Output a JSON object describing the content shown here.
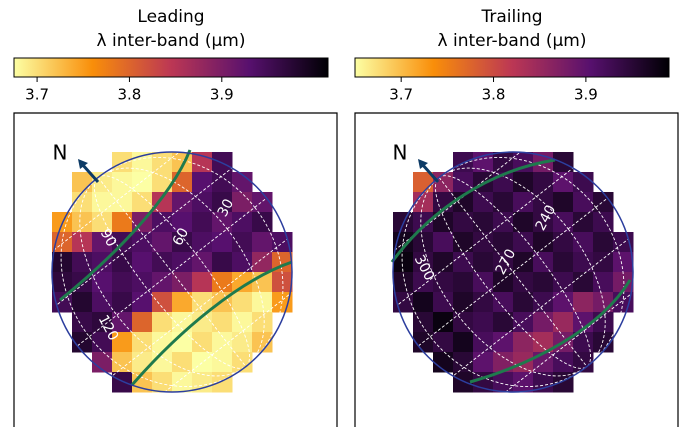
{
  "chart_data": [
    {
      "type": "heatmap",
      "title": "Leading",
      "colorbar_label": "λ inter-band  (μm)",
      "north_label": "N",
      "clim": [
        3.675,
        4.015
      ],
      "cticks": [
        3.7,
        3.8,
        3.9
      ],
      "longitude_labels": [
        30,
        60,
        90,
        120
      ],
      "values": [
        [
          null,
          null,
          null,
          3.7,
          3.68,
          3.7,
          3.72,
          3.85,
          3.95,
          null,
          null,
          null
        ],
        [
          null,
          3.72,
          3.69,
          3.68,
          3.67,
          3.7,
          3.8,
          3.93,
          3.95,
          3.92,
          null,
          null
        ],
        [
          null,
          3.7,
          3.68,
          3.68,
          3.7,
          3.85,
          3.92,
          3.94,
          3.96,
          3.9,
          3.92,
          null
        ],
        [
          3.75,
          3.72,
          3.7,
          3.78,
          3.9,
          3.94,
          3.93,
          3.95,
          3.92,
          3.94,
          3.96,
          null
        ],
        [
          3.8,
          3.85,
          3.92,
          3.95,
          3.94,
          3.92,
          3.96,
          3.94,
          3.93,
          3.95,
          3.92,
          3.94
        ],
        [
          3.98,
          3.95,
          3.94,
          3.96,
          3.93,
          3.95,
          3.94,
          3.92,
          3.96,
          3.94,
          3.88,
          3.8
        ],
        [
          3.97,
          3.96,
          3.93,
          3.95,
          3.94,
          3.92,
          3.9,
          3.85,
          3.78,
          3.74,
          3.72,
          3.82
        ],
        [
          3.95,
          3.98,
          3.94,
          3.96,
          3.93,
          3.82,
          3.74,
          3.7,
          3.72,
          3.7,
          3.68,
          3.75
        ],
        [
          null,
          3.96,
          3.97,
          3.92,
          3.8,
          3.7,
          3.68,
          3.69,
          3.7,
          3.68,
          3.7,
          null
        ],
        [
          null,
          3.98,
          3.95,
          3.75,
          3.7,
          3.68,
          3.67,
          3.7,
          3.68,
          3.69,
          3.72,
          null
        ],
        [
          null,
          null,
          3.9,
          3.72,
          3.69,
          3.68,
          3.7,
          3.67,
          3.68,
          3.7,
          null,
          null
        ],
        [
          null,
          null,
          null,
          3.96,
          3.72,
          3.7,
          3.68,
          3.69,
          3.7,
          null,
          null,
          null
        ]
      ]
    },
    {
      "type": "heatmap",
      "title": "Trailing",
      "colorbar_label": "λ inter-band  (μm)",
      "north_label": "N",
      "clim": [
        3.65,
        3.99
      ],
      "cticks": [
        3.7,
        3.8,
        3.9
      ],
      "longitude_labels": [
        240,
        270,
        300
      ],
      "values": [
        [
          null,
          null,
          null,
          3.93,
          3.9,
          3.94,
          3.92,
          3.88,
          3.95,
          null,
          null,
          null
        ],
        [
          null,
          3.78,
          3.86,
          3.92,
          3.95,
          3.93,
          3.96,
          3.94,
          3.9,
          3.93,
          null,
          null
        ],
        [
          null,
          3.84,
          3.94,
          3.96,
          3.93,
          3.95,
          3.92,
          3.94,
          3.96,
          3.92,
          3.95,
          null
        ],
        [
          3.95,
          3.93,
          3.96,
          3.94,
          3.95,
          3.93,
          3.96,
          3.94,
          3.92,
          3.95,
          3.93,
          null
        ],
        [
          3.97,
          3.95,
          3.92,
          3.96,
          3.94,
          3.95,
          3.93,
          3.96,
          3.94,
          3.92,
          3.95,
          3.93
        ],
        [
          3.98,
          3.94,
          3.96,
          3.93,
          3.95,
          3.94,
          3.96,
          3.92,
          3.95,
          3.93,
          3.94,
          3.9
        ],
        [
          3.96,
          3.93,
          3.94,
          3.95,
          3.92,
          3.96,
          3.94,
          3.95,
          3.93,
          3.95,
          3.92,
          3.88
        ],
        [
          3.94,
          3.97,
          3.93,
          3.96,
          3.94,
          3.92,
          3.95,
          3.93,
          3.9,
          3.86,
          3.88,
          3.92
        ],
        [
          null,
          3.95,
          3.98,
          3.94,
          3.93,
          3.95,
          3.92,
          3.88,
          3.85,
          3.9,
          3.93,
          null
        ],
        [
          null,
          3.96,
          3.94,
          3.97,
          3.92,
          3.9,
          3.86,
          3.84,
          3.88,
          3.93,
          3.95,
          null
        ],
        [
          null,
          null,
          3.97,
          3.95,
          3.9,
          3.87,
          3.85,
          3.89,
          3.92,
          3.94,
          null,
          null
        ],
        [
          null,
          null,
          null,
          3.96,
          3.94,
          3.92,
          3.9,
          3.93,
          3.95,
          null,
          null,
          null
        ]
      ]
    }
  ]
}
